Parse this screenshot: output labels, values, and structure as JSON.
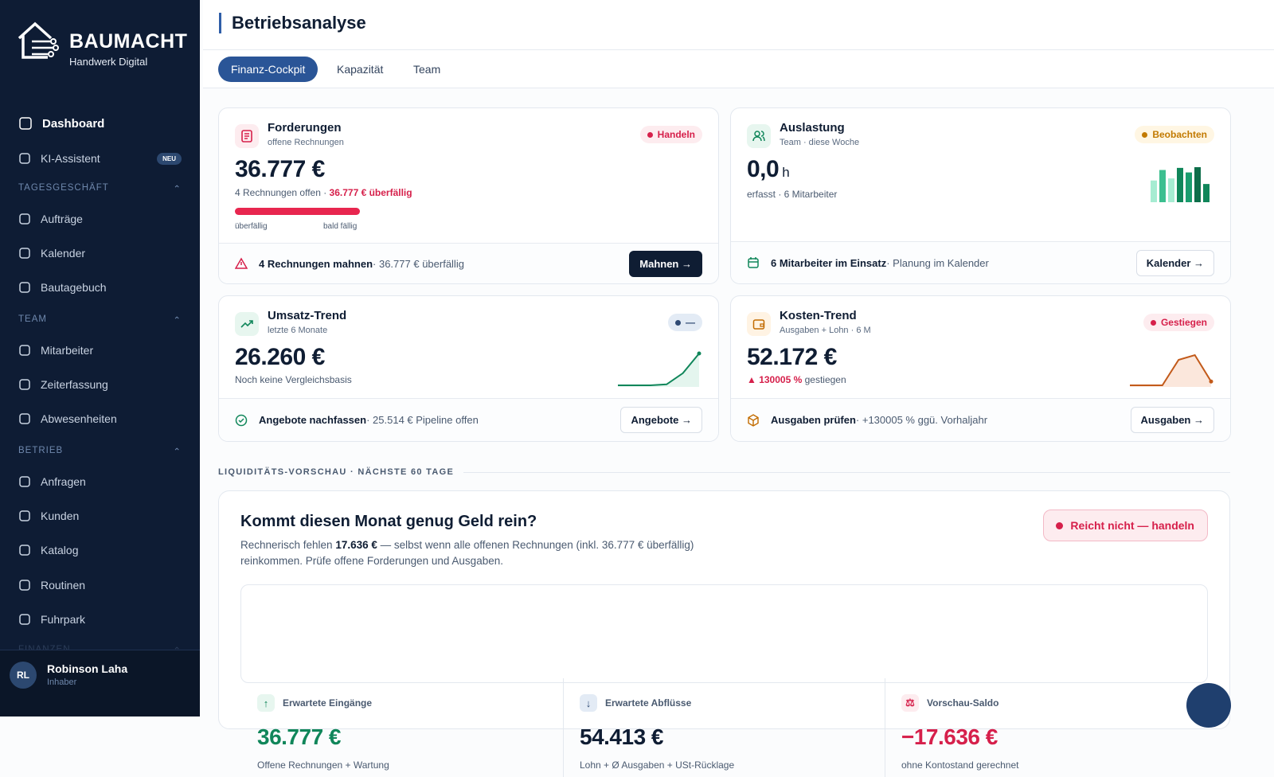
{
  "sidebar": {
    "brand": "BAUMACHT",
    "tagline": "Handwerk Digital",
    "top": [
      {
        "label": "Dashboard"
      },
      {
        "label": "KI-Assistent",
        "badge": "NEU"
      }
    ],
    "sections": [
      {
        "title": "TAGESGESCHÄFT",
        "items": [
          "Aufträge",
          "Kalender",
          "Bautagebuch"
        ]
      },
      {
        "title": "TEAM",
        "items": [
          "Mitarbeiter",
          "Zeiterfassung",
          "Abwesenheiten"
        ]
      },
      {
        "title": "BETRIEB",
        "items": [
          "Anfragen",
          "Kunden",
          "Katalog",
          "Routinen",
          "Fuhrpark"
        ]
      },
      {
        "title": "FINANZEN",
        "items": []
      }
    ],
    "user": {
      "initials": "RL",
      "name": "Robinson Laha",
      "role": "Inhaber"
    }
  },
  "header": {
    "title": "Betriebsanalyse",
    "tabs": [
      "Finanz-Cockpit",
      "Kapazität",
      "Team"
    ]
  },
  "cards": [
    {
      "title": "Forderungen",
      "subtitle": "offene Rechnungen",
      "badge": "Handeln",
      "value": "36.777 €",
      "note": "4 Rechnungen offen · ",
      "note_alert": "36.777 € überfällig",
      "bar_labels": [
        "überfällig",
        "bald fällig"
      ],
      "footer_strong": "4 Rechnungen mahnen",
      "footer_text": " · 36.777 € überfällig",
      "button": "Mahnen →"
    },
    {
      "title": "Auslastung",
      "subtitle": "Team · diese Woche",
      "badge": "Beobachten",
      "value": "0,0",
      "unit": "h",
      "note": "erfasst · 6 Mitarbeiter",
      "spark": {
        "type": "bar",
        "values": [
          0.62,
          0.92,
          0.68,
          0.98,
          0.85,
          1,
          0.52
        ]
      },
      "footer_strong": "6 Mitarbeiter im Einsatz",
      "footer_text": " · Planung im Kalender",
      "button": "Kalender →"
    },
    {
      "title": "Umsatz-Trend",
      "subtitle": "letzte 6 Monate",
      "badge": "—",
      "value": "26.260 €",
      "note": "Noch keine Vergleichsbasis",
      "spark": {
        "type": "line",
        "values": [
          0,
          0,
          0,
          0.03,
          0.38,
          1
        ]
      },
      "footer_strong": "Angebote nachfassen",
      "footer_text": " · 25.514 € Pipeline offen",
      "button": "Angebote →"
    },
    {
      "title": "Kosten-Trend",
      "subtitle": "Ausgaben + Lohn · 6 M",
      "badge": "Gestiegen",
      "value": "52.172 €",
      "note_alert": "▲ 130005 %",
      "note": " gestiegen",
      "spark": {
        "type": "line",
        "values": [
          0,
          0,
          0,
          0.8,
          0.95,
          0.12
        ]
      },
      "footer_strong": "Ausgaben prüfen",
      "footer_text": " · +130005 % ggü. Vorhaljahr",
      "button": "Ausgaben →"
    }
  ],
  "liquidity": {
    "section": "LIQUIDITÄTS-VORSCHAU · NÄCHSTE 60 TAGE",
    "title": "Kommt diesen Monat genug Geld rein?",
    "text_pre": "Rechnerisch fehlen ",
    "text_strong": "17.636 €",
    "text_post": " — selbst wenn alle offenen Rechnungen (inkl. 36.777 € überfällig) reinkommen. Prüfe offene Forderungen und Ausgaben.",
    "badge": "Reicht nicht — handeln",
    "stats": [
      {
        "label": "Erwartete Eingänge",
        "value": "36.777 €",
        "note": "Offene Rechnungen + Wartung"
      },
      {
        "label": "Erwartete Abflüsse",
        "value": "54.413 €",
        "note": "Lohn + Ø Ausgaben + USt-Rücklage"
      },
      {
        "label": "Vorschau-Saldo",
        "value": "−17.636 €",
        "note": "ohne Kontostand gerechnet"
      }
    ]
  }
}
